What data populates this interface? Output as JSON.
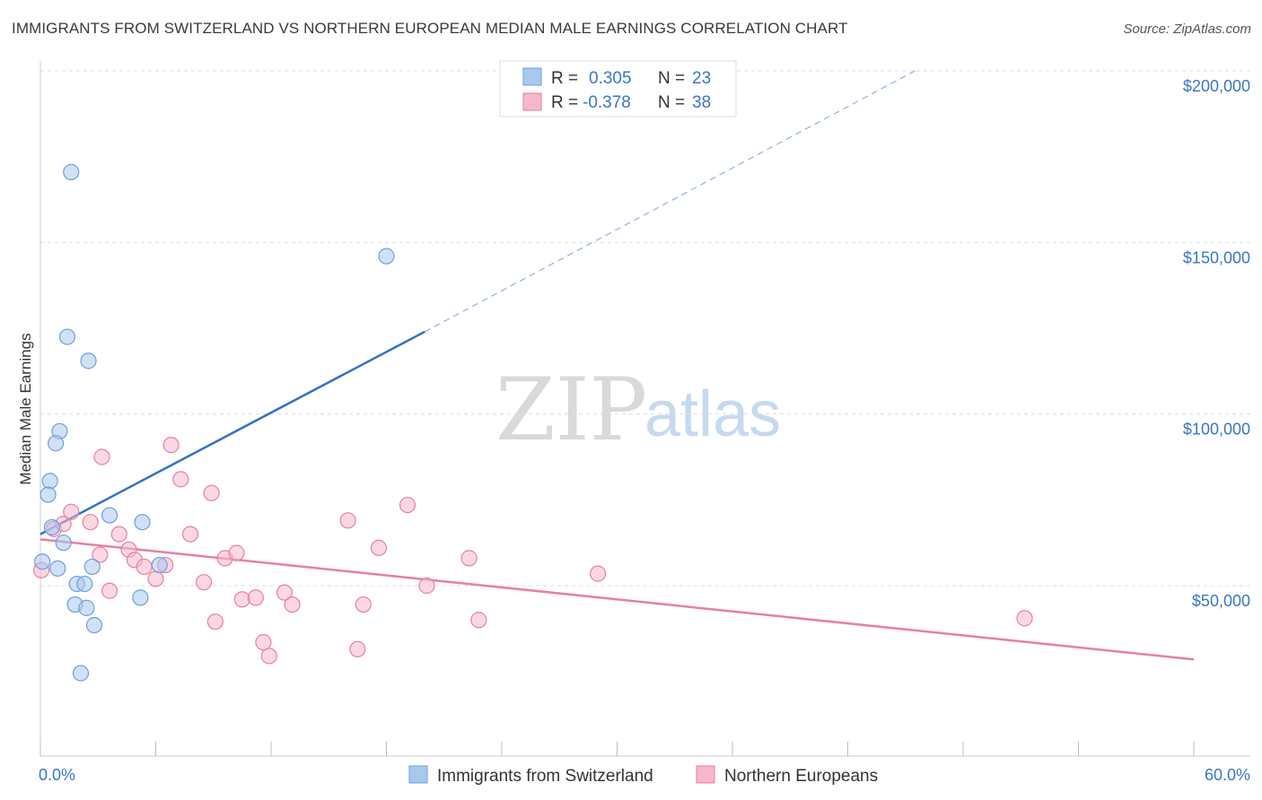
{
  "title": "IMMIGRANTS FROM SWITZERLAND VS NORTHERN EUROPEAN MEDIAN MALE EARNINGS CORRELATION CHART",
  "source": "Source: ZipAtlas.com",
  "watermark": {
    "zip": "ZIP",
    "atlas": "atlas"
  },
  "legend": {
    "rows": [
      {
        "r_label": "R =",
        "r_value": "0.305",
        "n_label": "N =",
        "n_value": "23",
        "color": "#a9c8ee"
      },
      {
        "r_label": "R =",
        "r_value": "-0.378",
        "n_label": "N =",
        "n_value": "38",
        "color": "#f5b8cb"
      }
    ]
  },
  "bottom_legend": [
    {
      "label": "Immigrants from Switzerland",
      "color": "#a9c8ee"
    },
    {
      "label": "Northern Europeans",
      "color": "#f5b8cb"
    }
  ],
  "chart_data": {
    "type": "scatter",
    "title": "IMMIGRANTS FROM SWITZERLAND VS NORTHERN EUROPEAN MEDIAN MALE EARNINGS CORRELATION CHART",
    "xlabel": "",
    "ylabel": "Median Male Earnings",
    "xlim": [
      0,
      60
    ],
    "ylim": [
      8000,
      205000
    ],
    "x_tick_labels": [
      "0.0%",
      "60.0%"
    ],
    "y_ticks": [
      50000,
      100000,
      150000,
      200000
    ],
    "y_tick_labels": [
      "$50,000",
      "$100,000",
      "$150,000",
      "$200,000"
    ],
    "grid": true,
    "legend_position": "top-center",
    "series": [
      {
        "name": "Immigrants from Switzerland",
        "color": "#6f9fdc",
        "fill": "#a9c8ee",
        "points": [
          [
            1.6,
            170500
          ],
          [
            18.0,
            146000
          ],
          [
            1.4,
            122500
          ],
          [
            2.5,
            115500
          ],
          [
            1.0,
            95000
          ],
          [
            0.8,
            91500
          ],
          [
            0.5,
            80500
          ],
          [
            0.4,
            76500
          ],
          [
            3.6,
            70500
          ],
          [
            5.3,
            68500
          ],
          [
            0.6,
            67000
          ],
          [
            1.2,
            62500
          ],
          [
            0.1,
            57000
          ],
          [
            0.9,
            55000
          ],
          [
            2.7,
            55500
          ],
          [
            6.2,
            56000
          ],
          [
            1.9,
            50500
          ],
          [
            2.3,
            50500
          ],
          [
            5.2,
            46500
          ],
          [
            1.8,
            44500
          ],
          [
            2.4,
            43500
          ],
          [
            2.8,
            38500
          ],
          [
            2.1,
            24500
          ]
        ],
        "trend": {
          "x": [
            0,
            20
          ],
          "y": [
            65000,
            124000
          ],
          "dashed_to": [
            45.5,
            200000
          ]
        }
      },
      {
        "name": "Northern Europeans",
        "color": "#e87fa2",
        "fill": "#f5b8cb",
        "points": [
          [
            0.05,
            54500
          ],
          [
            0.7,
            66500
          ],
          [
            1.2,
            68000
          ],
          [
            1.6,
            71500
          ],
          [
            2.6,
            68500
          ],
          [
            3.1,
            59000
          ],
          [
            3.6,
            48500
          ],
          [
            3.2,
            87500
          ],
          [
            4.1,
            65000
          ],
          [
            4.6,
            60500
          ],
          [
            4.9,
            57500
          ],
          [
            5.4,
            55500
          ],
          [
            6.0,
            52000
          ],
          [
            6.5,
            56000
          ],
          [
            6.8,
            91000
          ],
          [
            7.3,
            81000
          ],
          [
            7.8,
            65000
          ],
          [
            8.5,
            51000
          ],
          [
            8.9,
            77000
          ],
          [
            9.1,
            39500
          ],
          [
            9.6,
            58000
          ],
          [
            10.2,
            59500
          ],
          [
            10.5,
            46000
          ],
          [
            11.2,
            46500
          ],
          [
            11.6,
            33500
          ],
          [
            11.9,
            29500
          ],
          [
            12.7,
            48000
          ],
          [
            13.1,
            44500
          ],
          [
            16.0,
            69000
          ],
          [
            16.5,
            31500
          ],
          [
            16.8,
            44500
          ],
          [
            17.6,
            61000
          ],
          [
            19.1,
            73500
          ],
          [
            20.1,
            50000
          ],
          [
            22.3,
            58000
          ],
          [
            22.8,
            40000
          ],
          [
            29.0,
            53500
          ],
          [
            51.2,
            40500
          ]
        ],
        "trend": {
          "x": [
            0,
            60
          ],
          "y": [
            63500,
            28500
          ]
        }
      }
    ]
  }
}
